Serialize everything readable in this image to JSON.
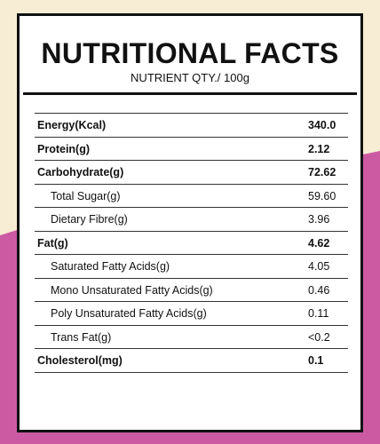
{
  "colors": {
    "cream": "#f7ecd4",
    "magenta": "#cc5aa2",
    "ink": "#111111",
    "card": "#ffffff"
  },
  "panel": {
    "title": "NUTRITIONAL FACTS",
    "subtitle": "NUTRIENT QTY./ 100g"
  },
  "nutrients": [
    {
      "name": "Energy(Kcal)",
      "value": "340.0",
      "bold": true
    },
    {
      "name": "Protein(g)",
      "value": "2.12",
      "bold": true
    },
    {
      "name": "Carbohydrate(g)",
      "value": "72.62",
      "bold": true
    },
    {
      "name": "Total Sugar(g)",
      "value": "59.60",
      "bold": false
    },
    {
      "name": "Dietary Fibre(g)",
      "value": "3.96",
      "bold": false
    },
    {
      "name": "Fat(g)",
      "value": "4.62",
      "bold": true
    },
    {
      "name": "Saturated Fatty Acids(g)",
      "value": "4.05",
      "bold": false
    },
    {
      "name": "Mono Unsaturated Fatty Acids(g)",
      "value": "0.46",
      "bold": false
    },
    {
      "name": "Poly Unsaturated Fatty Acids(g)",
      "value": "0.11",
      "bold": false
    },
    {
      "name": "Trans Fat(g)",
      "value": "<0.2",
      "bold": false
    },
    {
      "name": "Cholesterol(mg)",
      "value": "0.1",
      "bold": true
    }
  ]
}
